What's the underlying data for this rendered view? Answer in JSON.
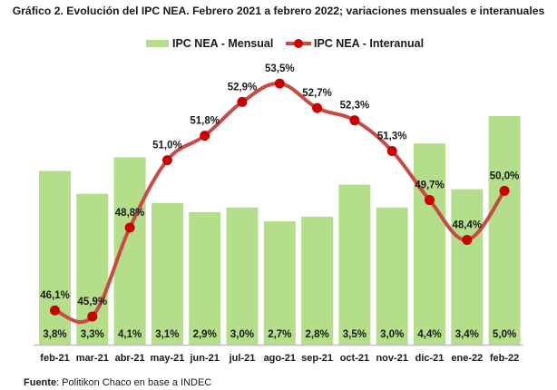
{
  "chart_data": {
    "type": "bar",
    "title": "Gráfico 2. Evolución del IPC NEA. Febrero 2021 a febrero 2022; variaciones mensuales e interanuales",
    "xlabel": "",
    "ylabel": "",
    "categories": [
      "feb-21",
      "mar-21",
      "abr-21",
      "may-21",
      "jun-21",
      "jul-21",
      "ago-21",
      "sep-21",
      "oct-21",
      "nov-21",
      "dic-21",
      "ene-22",
      "feb-22"
    ],
    "series": [
      {
        "name": "IPC NEA - Mensual",
        "type": "bar",
        "color": "#B4DE8A",
        "values": [
          3.8,
          3.3,
          4.1,
          3.1,
          2.9,
          3.0,
          2.7,
          2.8,
          3.5,
          3.0,
          4.4,
          3.4,
          5.0
        ],
        "labels": [
          "3,8%",
          "3,3%",
          "4,1%",
          "3,1%",
          "2,9%",
          "3,0%",
          "2,7%",
          "2,8%",
          "3,5%",
          "3,0%",
          "4,4%",
          "3,4%",
          "5,0%"
        ]
      },
      {
        "name": "IPC NEA - Interanual",
        "type": "line",
        "color": "#C94A45",
        "marker_color": "#CC0000",
        "values": [
          46.1,
          45.9,
          48.8,
          51.0,
          51.8,
          52.9,
          53.5,
          52.7,
          52.3,
          51.3,
          49.7,
          48.4,
          50.0
        ],
        "labels": [
          "46,1%",
          "45,9%",
          "48,8%",
          "51,0%",
          "51,8%",
          "52,9%",
          "53,5%",
          "52,7%",
          "52,3%",
          "51,3%",
          "49,7%",
          "48,4%",
          "50,0%"
        ]
      }
    ],
    "legend": {
      "position": "top"
    },
    "grid": false
  },
  "source": {
    "label": "Fuente",
    "text": ": Politikon Chaco en base a INDEC"
  }
}
